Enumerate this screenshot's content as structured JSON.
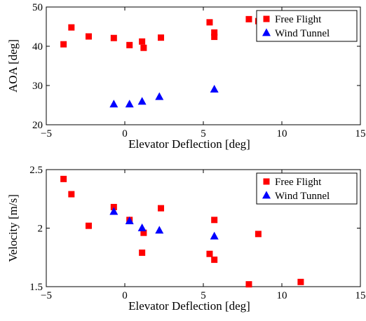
{
  "chart_data": [
    {
      "type": "scatter",
      "title": "",
      "xlabel": "Elevator Deflection [deg]",
      "ylabel": "AOA [deg]",
      "xlim": [
        -5,
        15
      ],
      "ylim": [
        20,
        50
      ],
      "xticks": [
        -5,
        0,
        5,
        10,
        15
      ],
      "yticks": [
        20,
        30,
        40,
        50
      ],
      "grid": false,
      "legend_position": "top-right",
      "series": [
        {
          "name": "Free Flight",
          "marker": "square",
          "color": "#ff0000",
          "x": [
            -3.9,
            -3.4,
            -2.3,
            -0.7,
            0.3,
            1.1,
            1.2,
            2.3,
            5.4,
            5.7,
            5.7,
            7.9,
            8.5
          ],
          "y": [
            40.5,
            44.8,
            42.5,
            42.1,
            40.3,
            41.2,
            39.6,
            42.2,
            46.1,
            43.5,
            42.4,
            46.9,
            46.4
          ]
        },
        {
          "name": "Wind Tunnel",
          "marker": "triangle",
          "color": "#0000ff",
          "x": [
            -0.7,
            0.3,
            1.1,
            2.2,
            5.7
          ],
          "y": [
            25.2,
            25.2,
            25.9,
            27.1,
            29.0
          ]
        }
      ]
    },
    {
      "type": "scatter",
      "title": "",
      "xlabel": "Elevator Deflection [deg]",
      "ylabel": "Velocity [m/s]",
      "xlim": [
        -5,
        15
      ],
      "ylim": [
        1.5,
        2.5
      ],
      "xticks": [
        -5,
        0,
        5,
        10,
        15
      ],
      "yticks": [
        1.5,
        2,
        2.5
      ],
      "grid": false,
      "legend_position": "top-right",
      "series": [
        {
          "name": "Free Flight",
          "marker": "square",
          "color": "#ff0000",
          "x": [
            -3.9,
            -3.4,
            -2.3,
            -0.7,
            0.3,
            1.1,
            1.2,
            2.3,
            5.4,
            5.7,
            5.7,
            7.9,
            8.5,
            11.2
          ],
          "y": [
            2.42,
            2.29,
            2.02,
            2.18,
            2.07,
            1.79,
            1.96,
            2.17,
            1.78,
            1.73,
            2.07,
            1.52,
            1.95,
            1.54
          ]
        },
        {
          "name": "Wind Tunnel",
          "marker": "triangle",
          "color": "#0000ff",
          "x": [
            -0.7,
            0.3,
            1.1,
            2.2,
            5.7
          ],
          "y": [
            2.14,
            2.06,
            2.0,
            1.98,
            1.93
          ]
        }
      ]
    }
  ]
}
